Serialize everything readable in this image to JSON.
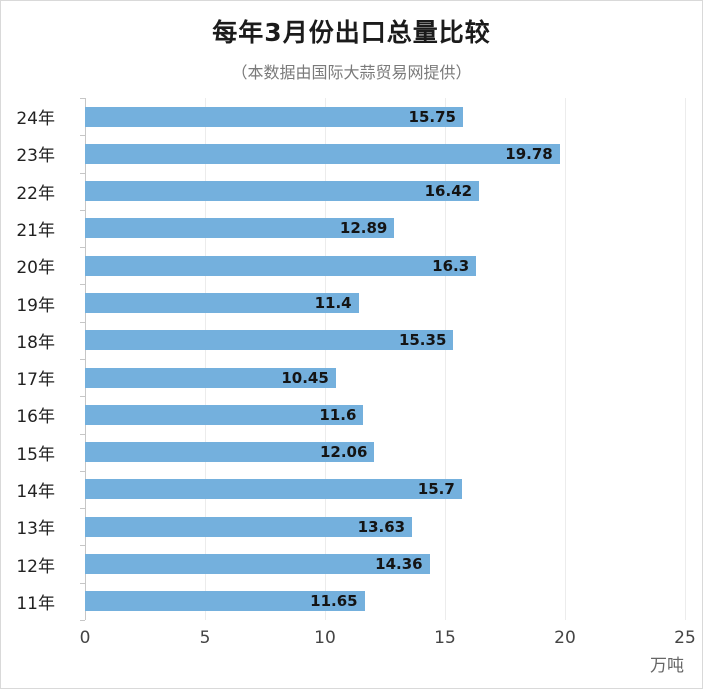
{
  "header": {
    "title": "每年3月份出口总量比较",
    "subtitle": "（本数据由国际大蒜贸易网提供）"
  },
  "axis": {
    "unit_label": "万吨"
  },
  "chart_data": {
    "type": "bar",
    "orientation": "horizontal",
    "title": "每年3月份出口总量比较",
    "subtitle": "（本数据由国际大蒜贸易网提供）",
    "categories": [
      "24年",
      "23年",
      "22年",
      "21年",
      "20年",
      "19年",
      "18年",
      "17年",
      "16年",
      "15年",
      "14年",
      "13年",
      "12年",
      "11年"
    ],
    "values": [
      15.75,
      19.78,
      16.42,
      12.89,
      16.3,
      11.4,
      15.35,
      10.45,
      11.6,
      12.06,
      15.7,
      13.63,
      14.36,
      11.65
    ],
    "xlabel": "万吨",
    "ylabel": "",
    "xlim": [
      0,
      25
    ],
    "xticks": [
      0,
      5,
      10,
      15,
      20,
      25
    ],
    "grid": true,
    "legend": "none",
    "bar_color": "#74b0dd",
    "value_label_color": "#141414"
  }
}
